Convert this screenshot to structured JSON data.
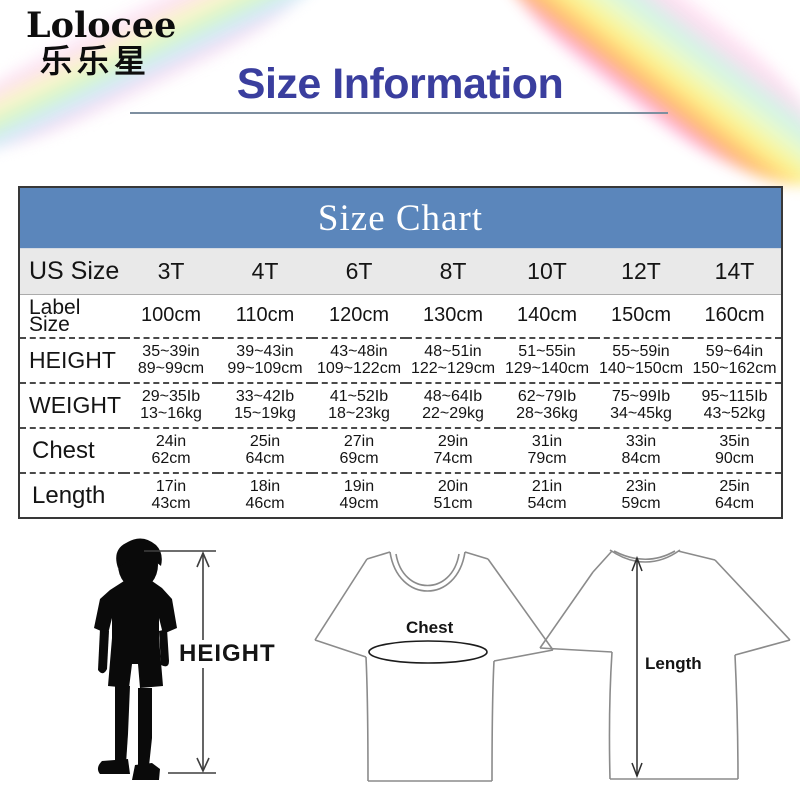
{
  "brand": {
    "name": "Lolocee",
    "cn": "乐乐星"
  },
  "title": "Size Information",
  "size_chart": {
    "caption": "Size Chart",
    "rows": [
      {
        "key": "us_size",
        "label": "US Size",
        "values": [
          "3T",
          "4T",
          "6T",
          "8T",
          "10T",
          "12T",
          "14T"
        ]
      },
      {
        "key": "label_size",
        "label": "Label Size",
        "values": [
          "100cm",
          "110cm",
          "120cm",
          "130cm",
          "140cm",
          "150cm",
          "160cm"
        ]
      },
      {
        "key": "height",
        "label": "HEIGHT",
        "values": [
          [
            "35~39in",
            "89~99cm"
          ],
          [
            "39~43in",
            "99~109cm"
          ],
          [
            "43~48in",
            "109~122cm"
          ],
          [
            "48~51in",
            "122~129cm"
          ],
          [
            "51~55in",
            "129~140cm"
          ],
          [
            "55~59in",
            "140~150cm"
          ],
          [
            "59~64in",
            "150~162cm"
          ]
        ]
      },
      {
        "key": "weight",
        "label": "WEIGHT",
        "values": [
          [
            "29~35Ib",
            "13~16kg"
          ],
          [
            "33~42Ib",
            "15~19kg"
          ],
          [
            "41~52Ib",
            "18~23kg"
          ],
          [
            "48~64Ib",
            "22~29kg"
          ],
          [
            "62~79Ib",
            "28~36kg"
          ],
          [
            "75~99Ib",
            "34~45kg"
          ],
          [
            "95~115Ib",
            "43~52kg"
          ]
        ]
      },
      {
        "key": "chest",
        "label": "Chest",
        "values": [
          [
            "24in",
            "62cm"
          ],
          [
            "25in",
            "64cm"
          ],
          [
            "27in",
            "69cm"
          ],
          [
            "29in",
            "74cm"
          ],
          [
            "31in",
            "79cm"
          ],
          [
            "33in",
            "84cm"
          ],
          [
            "35in",
            "90cm"
          ]
        ]
      },
      {
        "key": "length",
        "label": "Length",
        "values": [
          [
            "17in",
            "43cm"
          ],
          [
            "18in",
            "46cm"
          ],
          [
            "19in",
            "49cm"
          ],
          [
            "20in",
            "51cm"
          ],
          [
            "21in",
            "54cm"
          ],
          [
            "23in",
            "59cm"
          ],
          [
            "25in",
            "64cm"
          ]
        ]
      }
    ]
  },
  "diagram": {
    "height_label": "HEIGHT",
    "chest_label": "Chest",
    "length_label": "Length"
  },
  "colors": {
    "header_blue": "#5b86bb",
    "title_blue": "#3a3e9e",
    "us_size_row_gray": "#e9e9e9",
    "underline_gray": "#7e8fa0",
    "shirt_outline_gray": "#8b8b8b",
    "silhouette_black": "#0a0a0a"
  }
}
